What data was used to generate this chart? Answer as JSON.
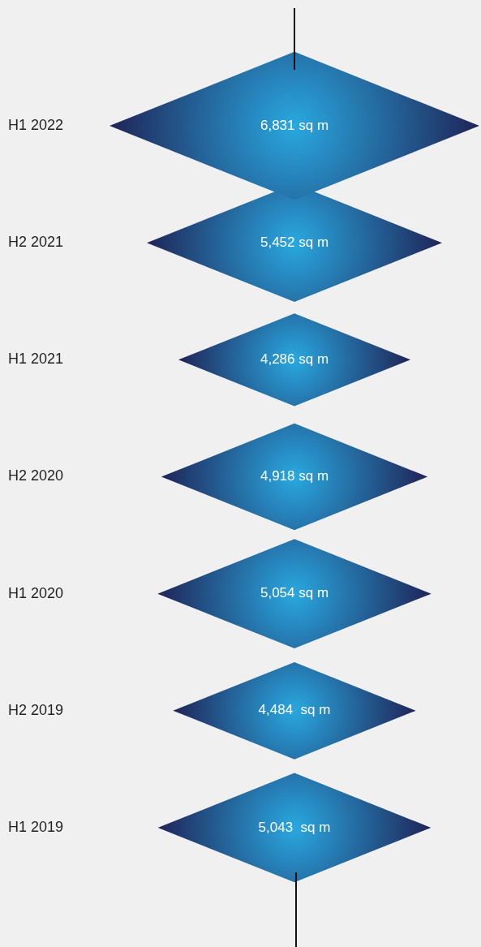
{
  "chart_data": {
    "type": "other",
    "categories": [
      "H1 2022",
      "H2 2021",
      "H1 2021",
      "H2 2020",
      "H1 2020",
      "H2 2019",
      "H1 2019"
    ],
    "values": [
      6831,
      5452,
      4286,
      4918,
      5054,
      4484,
      5043
    ],
    "value_labels": [
      "6,831 sq m",
      "5,452 sq m",
      "4,286 sq m",
      "4,918 sq m",
      "5,054 sq m",
      "4,484  sq m",
      "5,043  sq m"
    ],
    "color": "#29a8e0"
  }
}
